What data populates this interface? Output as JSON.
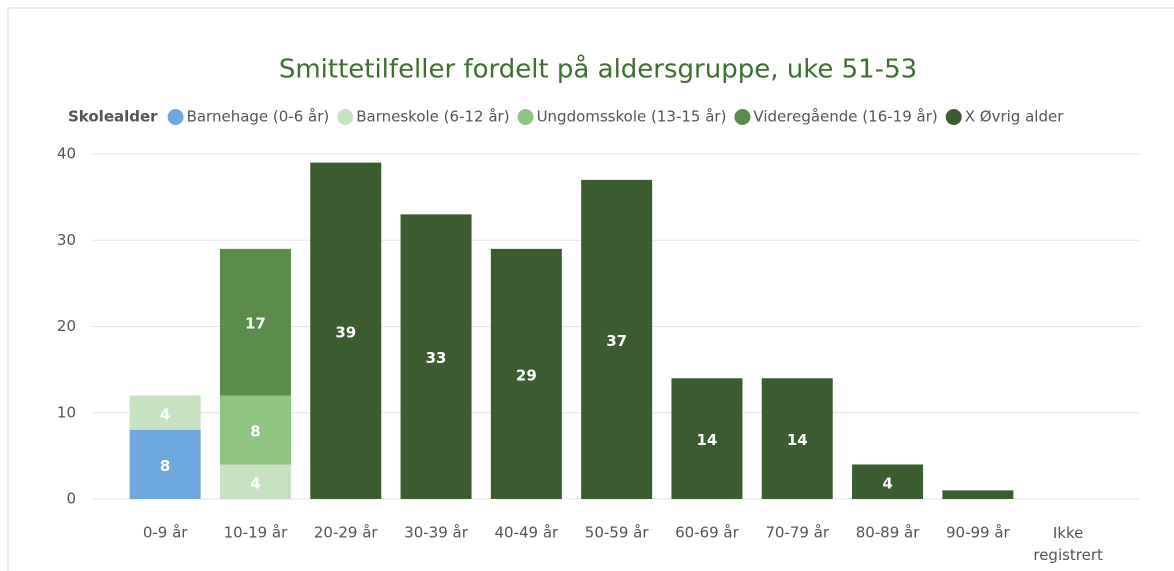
{
  "chart_data": {
    "type": "stacked_bar",
    "title": "Smittetilfeller fordelt på aldersgruppe, uke 51-53",
    "legend_title": "Skolealder",
    "categories": [
      "0-9 år",
      "10-19 år",
      "20-29 år",
      "30-39 år",
      "40-49 år",
      "50-59 år",
      "60-69 år",
      "70-79 år",
      "80-89 år",
      "90-99 år",
      "Ikke registrert"
    ],
    "series": [
      {
        "name": "Barnehage (0-6 år)",
        "color": "#6fa8dc",
        "values": [
          8,
          null,
          null,
          null,
          null,
          null,
          null,
          null,
          null,
          null,
          null
        ]
      },
      {
        "name": "Barneskole (6-12 år)",
        "color": "#c6e2c1",
        "values": [
          4,
          4,
          null,
          null,
          null,
          null,
          null,
          null,
          null,
          null,
          null
        ]
      },
      {
        "name": "Ungdomsskole (13-15 år)",
        "color": "#8ec582",
        "values": [
          null,
          8,
          null,
          null,
          null,
          null,
          null,
          null,
          null,
          null,
          null
        ]
      },
      {
        "name": "Videregående (16-19 år)",
        "color": "#5a8d4c",
        "values": [
          null,
          17,
          null,
          null,
          null,
          null,
          null,
          null,
          null,
          null,
          null
        ]
      },
      {
        "name": "X Øvrig alder",
        "color": "#3a5c2f",
        "values": [
          null,
          null,
          39,
          33,
          29,
          37,
          14,
          14,
          4,
          1,
          null
        ]
      }
    ],
    "ylim": [
      0,
      40
    ],
    "yticks": [
      0,
      10,
      20,
      30,
      40
    ],
    "grid": true
  }
}
